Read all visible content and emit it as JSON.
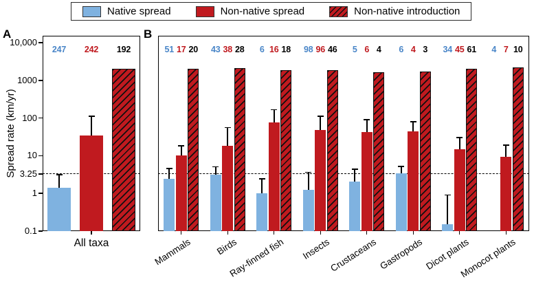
{
  "figure": {
    "panel_a_label": "A",
    "panel_b_label": "B"
  },
  "legend": {
    "items": [
      {
        "label": "Native spread",
        "swatch": "native"
      },
      {
        "label": "Non-native spread",
        "swatch": "nonnative"
      },
      {
        "label": "Non-native introduction",
        "swatch": "nonnative-hatched"
      }
    ]
  },
  "colors": {
    "native": "#7fb2e0",
    "nonnative": "#c01a1f",
    "hatch": "#101010",
    "count_native": "#4a86c8",
    "count_nonnative": "#c01a1f",
    "count_introduction": "#000000",
    "reference_line": "#000000"
  },
  "y_axis": {
    "label": "Spread rate (km/yr)",
    "scale": "log",
    "range": [
      0.1,
      10000
    ],
    "reference_value": 3.25,
    "ticks": [
      {
        "value": 10000,
        "label": "10,000"
      },
      {
        "value": 1000,
        "label": "1000"
      },
      {
        "value": 100,
        "label": "100"
      },
      {
        "value": 10,
        "label": "10"
      },
      {
        "value": 3.25,
        "label": "3.25"
      },
      {
        "value": 1,
        "label": "1"
      },
      {
        "value": 0.1,
        "label": "0.1"
      }
    ]
  },
  "chart_data": {
    "type": "bar",
    "scale": "log",
    "ylim": [
      0.1,
      10000
    ],
    "reference_line": 3.25,
    "series": [
      "Native spread",
      "Non-native spread",
      "Non-native introduction"
    ],
    "panels": [
      {
        "label": "A",
        "groups": [
          {
            "category": "All taxa",
            "counts": [
              247,
              242,
              192
            ],
            "values": [
              1.4,
              35,
              2000
            ],
            "upper_ci": [
              3.1,
              110,
              null
            ]
          }
        ]
      },
      {
        "label": "B",
        "groups": [
          {
            "category": "Mammals",
            "counts": [
              51,
              17,
              20
            ],
            "values": [
              2.4,
              10,
              2000
            ],
            "upper_ci": [
              4.5,
              18,
              null
            ]
          },
          {
            "category": "Birds",
            "counts": [
              43,
              38,
              28
            ],
            "values": [
              3.2,
              18,
              2100
            ],
            "upper_ci": [
              5,
              55,
              null
            ]
          },
          {
            "category": "Ray-finned fish",
            "counts": [
              6,
              16,
              18
            ],
            "values": [
              1.0,
              78,
              1900
            ],
            "upper_ci": [
              2.4,
              165,
              null
            ]
          },
          {
            "category": "Insects",
            "counts": [
              98,
              96,
              46
            ],
            "values": [
              1.25,
              48,
              1900
            ],
            "upper_ci": [
              3.6,
              110,
              null
            ]
          },
          {
            "category": "Crustaceans",
            "counts": [
              5,
              6,
              4
            ],
            "values": [
              2.1,
              43,
              1650
            ],
            "upper_ci": [
              4.4,
              90,
              null
            ]
          },
          {
            "category": "Gastropods",
            "counts": [
              6,
              4,
              3
            ],
            "values": [
              3.4,
              45,
              1700
            ],
            "upper_ci": [
              5.2,
              80,
              null
            ]
          },
          {
            "category": "Dicot plants",
            "counts": [
              34,
              45,
              61
            ],
            "values": [
              0.15,
              15,
              2000
            ],
            "upper_ci": [
              0.9,
              30,
              null
            ]
          },
          {
            "category": "Monocot plants",
            "counts": [
              4,
              7,
              10
            ],
            "values": [
              null,
              9.5,
              2200
            ],
            "upper_ci": [
              null,
              19,
              null
            ]
          }
        ]
      }
    ]
  }
}
